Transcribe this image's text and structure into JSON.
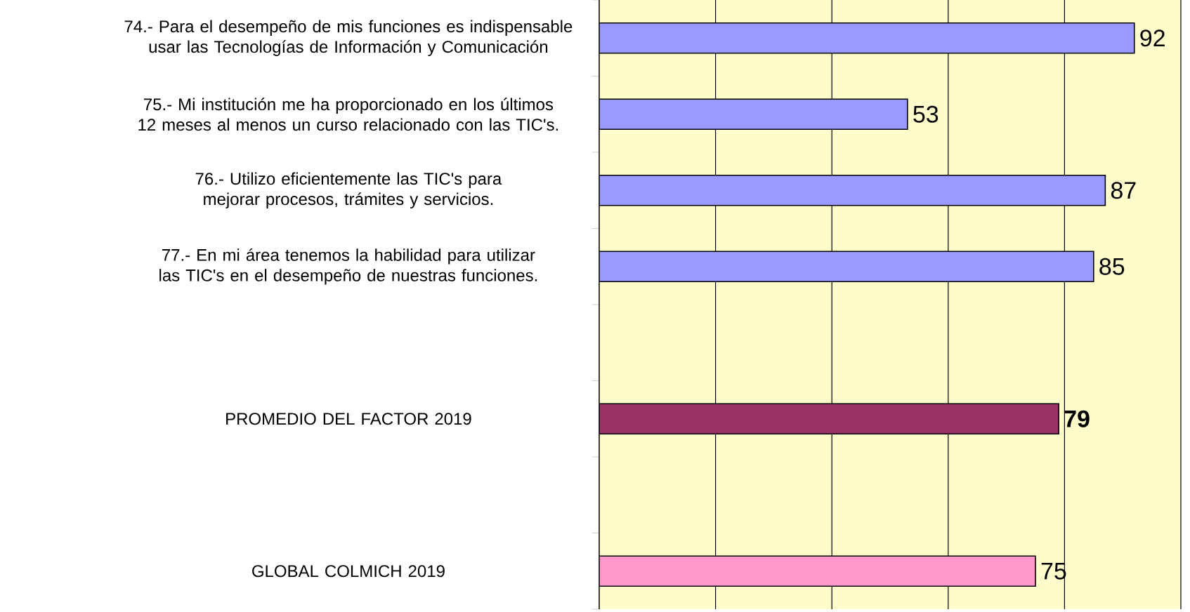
{
  "chart_data": {
    "type": "bar",
    "orientation": "horizontal",
    "categories": [
      "74.- Para el desempeño de mis funciones es indispensable usar las Tecnologías de Información y Comunicación",
      "75.- Mi institución me ha proporcionado en los últimos 12 meses al menos un curso relacionado con las TIC's.",
      "76.- Utilizo eficientemente las TIC's para mejorar procesos, trámites y servicios.",
      "77.- En mi área tenemos la habilidad para utilizar las TIC's en el desempeño de nuestras funciones.",
      null,
      "PROMEDIO DEL FACTOR   2019",
      null,
      "GLOBAL COLMICH  2019"
    ],
    "values": [
      92,
      53,
      87,
      85,
      null,
      79,
      null,
      75
    ],
    "colors": [
      "#9999ff",
      "#9999ff",
      "#9999ff",
      "#9999ff",
      null,
      "#993366",
      null,
      "#ff99cc"
    ],
    "value_labels": [
      "92",
      "53",
      "87",
      "85",
      null,
      "**79**",
      null,
      "75"
    ],
    "xlim": [
      0,
      100
    ],
    "grid": "x",
    "tick_labels": "y"
  }
}
